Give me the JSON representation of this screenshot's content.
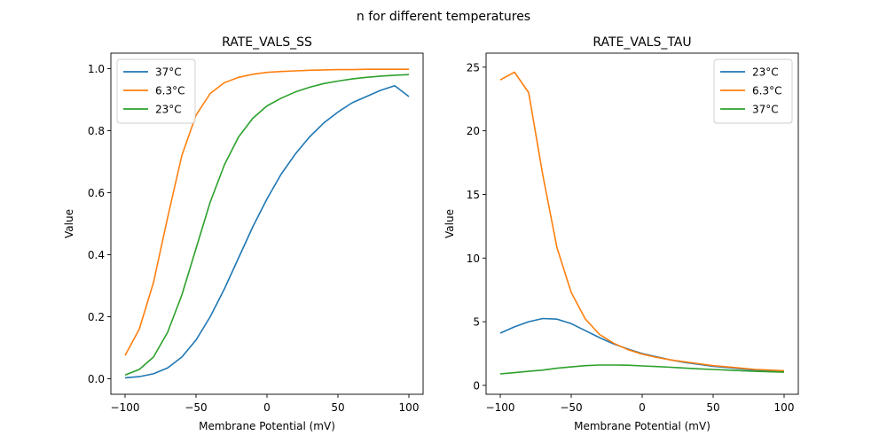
{
  "suptitle": "n for different temperatures",
  "chart_data": [
    {
      "type": "line",
      "title": "RATE_VALS_SS",
      "xlabel": "Membrane Potential (mV)",
      "ylabel": "Value",
      "xlim": [
        -110,
        110
      ],
      "ylim": [
        -0.05,
        1.05
      ],
      "xticks": [
        -100,
        -50,
        0,
        50,
        100
      ],
      "xtick_labels": [
        "−100",
        "−50",
        "0",
        "50",
        "100"
      ],
      "yticks": [
        0.0,
        0.2,
        0.4,
        0.6,
        0.8,
        1.0
      ],
      "ytick_labels": [
        "0.0",
        "0.2",
        "0.4",
        "0.6",
        "0.8",
        "1.0"
      ],
      "legend_position": "top-left",
      "x": [
        -100,
        -90,
        -80,
        -70,
        -60,
        -50,
        -40,
        -30,
        -20,
        -10,
        0,
        10,
        20,
        30,
        40,
        50,
        60,
        70,
        80,
        90,
        100
      ],
      "series": [
        {
          "name": "37°C",
          "color": "#1f77b4",
          "values": [
            0.003,
            0.007,
            0.016,
            0.035,
            0.07,
            0.125,
            0.2,
            0.29,
            0.39,
            0.49,
            0.58,
            0.66,
            0.725,
            0.78,
            0.825,
            0.86,
            0.89,
            0.91,
            0.93,
            0.945,
            0.91
          ]
        },
        {
          "name": "6.3°C",
          "color": "#ff7f0e",
          "values": [
            0.075,
            0.16,
            0.31,
            0.52,
            0.72,
            0.85,
            0.92,
            0.955,
            0.972,
            0.982,
            0.988,
            0.991,
            0.993,
            0.995,
            0.996,
            0.997,
            0.997,
            0.998,
            0.998,
            0.998,
            0.998
          ]
        },
        {
          "name": "23°C",
          "color": "#2ca02c",
          "values": [
            0.012,
            0.03,
            0.07,
            0.15,
            0.27,
            0.42,
            0.57,
            0.69,
            0.78,
            0.84,
            0.88,
            0.905,
            0.925,
            0.94,
            0.952,
            0.96,
            0.967,
            0.972,
            0.976,
            0.979,
            0.981
          ]
        }
      ]
    },
    {
      "type": "line",
      "title": "RATE_VALS_TAU",
      "xlabel": "Membrane Potential (mV)",
      "ylabel": "Value",
      "xlim": [
        -110,
        110
      ],
      "ylim": [
        -0.7,
        26.1
      ],
      "xticks": [
        -100,
        -50,
        0,
        50,
        100
      ],
      "xtick_labels": [
        "−100",
        "−50",
        "0",
        "50",
        "100"
      ],
      "yticks": [
        0,
        5,
        10,
        15,
        20,
        25
      ],
      "ytick_labels": [
        "0",
        "5",
        "10",
        "15",
        "20",
        "25"
      ],
      "legend_position": "top-right",
      "x": [
        -100,
        -90,
        -80,
        -70,
        -60,
        -50,
        -40,
        -30,
        -20,
        -10,
        0,
        10,
        20,
        30,
        40,
        50,
        60,
        70,
        80,
        90,
        100
      ],
      "series": [
        {
          "name": "23°C",
          "color": "#1f77b4",
          "values": [
            4.1,
            4.6,
            5.0,
            5.25,
            5.2,
            4.85,
            4.3,
            3.75,
            3.25,
            2.85,
            2.5,
            2.25,
            2.0,
            1.8,
            1.65,
            1.5,
            1.4,
            1.3,
            1.2,
            1.15,
            1.1
          ]
        },
        {
          "name": "6.3°C",
          "color": "#ff7f0e",
          "values": [
            24.0,
            24.6,
            23.0,
            16.5,
            10.8,
            7.3,
            5.2,
            4.0,
            3.3,
            2.8,
            2.45,
            2.2,
            2.0,
            1.85,
            1.7,
            1.55,
            1.45,
            1.35,
            1.25,
            1.2,
            1.15
          ]
        },
        {
          "name": "37°C",
          "color": "#2ca02c",
          "values": [
            0.9,
            1.0,
            1.1,
            1.2,
            1.35,
            1.45,
            1.55,
            1.6,
            1.6,
            1.58,
            1.53,
            1.48,
            1.42,
            1.36,
            1.3,
            1.25,
            1.2,
            1.15,
            1.1,
            1.07,
            1.03
          ]
        }
      ]
    }
  ]
}
